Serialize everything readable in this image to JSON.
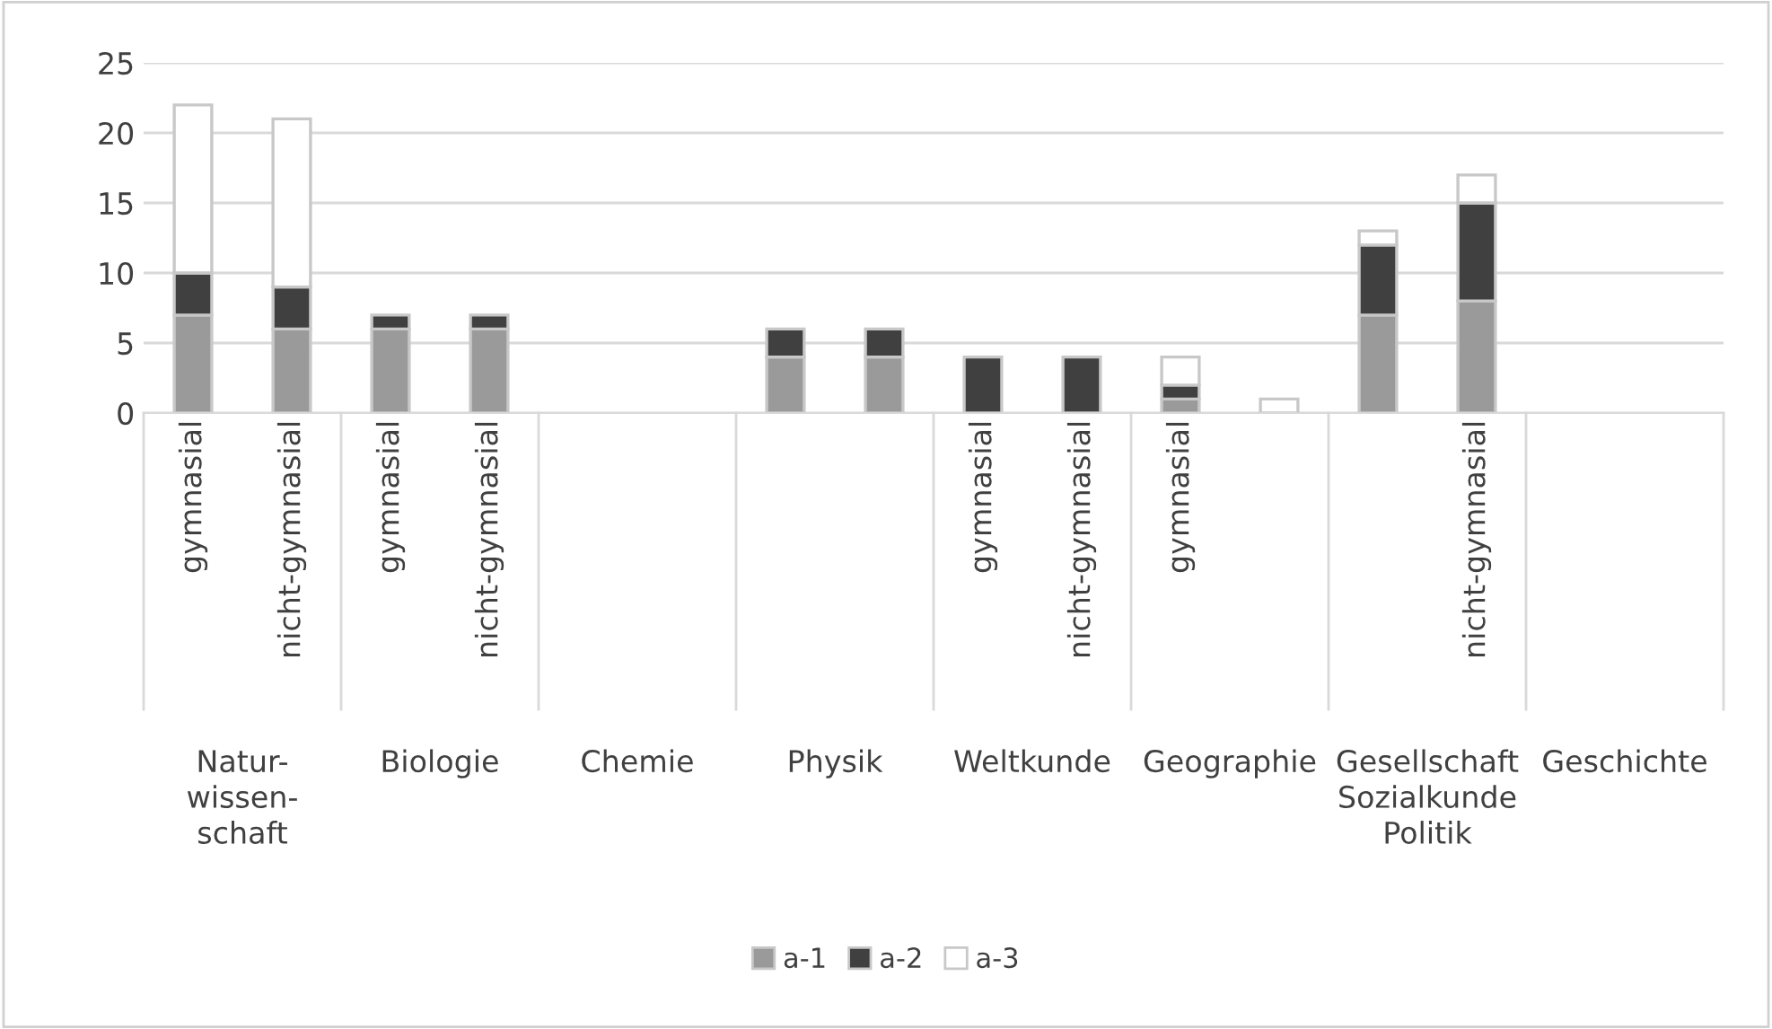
{
  "chart_data": {
    "type": "bar",
    "stacked": true,
    "categories": [
      "gymnasial",
      "nicht-gymnasial",
      "gymnasial",
      "nicht-gymnasial",
      null,
      null,
      null,
      null,
      "gymnasial",
      "nicht-gymnasial",
      "gymnasial",
      null,
      null,
      "nicht-gymnasial",
      null,
      null
    ],
    "annotations": [
      "Natur-\nwissen-\nschaft",
      "Biologie",
      "Chemie",
      "Physik",
      "Weltkunde",
      "Geographie",
      "Gesellschaft\nSozialkunde\nPolitik",
      "Geschichte"
    ],
    "series": [
      {
        "name": "a-1",
        "color": "#9a9a9a",
        "values": [
          7,
          6,
          6,
          6,
          0,
          0,
          4,
          4,
          0,
          0,
          1,
          0,
          7,
          8,
          0,
          0
        ]
      },
      {
        "name": "a-2",
        "color": "#404040",
        "values": [
          3,
          3,
          1,
          1,
          0,
          0,
          2,
          2,
          4,
          4,
          1,
          0,
          5,
          7,
          0,
          0
        ]
      },
      {
        "name": "a-3",
        "color": "#ffffff",
        "values": [
          12,
          12,
          0,
          0,
          0,
          0,
          0,
          0,
          0,
          0,
          2,
          1,
          1,
          2,
          0,
          0
        ]
      }
    ],
    "ylim": [
      0,
      25
    ],
    "yticks": [
      0,
      5,
      10,
      15,
      20,
      25
    ],
    "grid": "y",
    "legend": "bottom"
  }
}
